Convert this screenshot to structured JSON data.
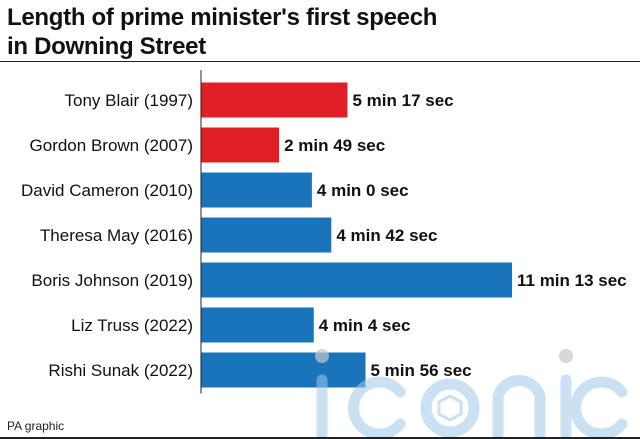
{
  "header": {
    "title_line1": "Length of prime minister's first speech",
    "title_line2": "in Downing Street"
  },
  "footer": {
    "source": "PA graphic"
  },
  "watermark": {
    "text": "iconic"
  },
  "colors": {
    "red": "#e01e26",
    "blue": "#1a74bb",
    "text": "#111111"
  },
  "chart_data": {
    "type": "bar",
    "orientation": "horizontal",
    "title": "Length of prime minister's first speech in Downing Street",
    "xlabel": "",
    "ylabel": "",
    "unit": "seconds",
    "xlim": [
      0,
      673
    ],
    "grid": false,
    "categories": [
      "Tony Blair (1997)",
      "Gordon Brown (2007)",
      "David Cameron (2010)",
      "Theresa May (2016)",
      "Boris Johnson (2019)",
      "Liz Truss (2022)",
      "Rishi Sunak (2022)"
    ],
    "values": [
      317,
      169,
      240,
      282,
      673,
      244,
      356
    ],
    "labels": [
      "5 min 17 sec",
      "2 min 49 sec",
      "4 min 0 sec",
      "4 min 42 sec",
      "11 min 13 sec",
      "4 min 4 sec",
      "5 min 56 sec"
    ],
    "bar_colors": [
      "#e01e26",
      "#e01e26",
      "#1a74bb",
      "#1a74bb",
      "#1a74bb",
      "#1a74bb",
      "#1a74bb"
    ]
  }
}
